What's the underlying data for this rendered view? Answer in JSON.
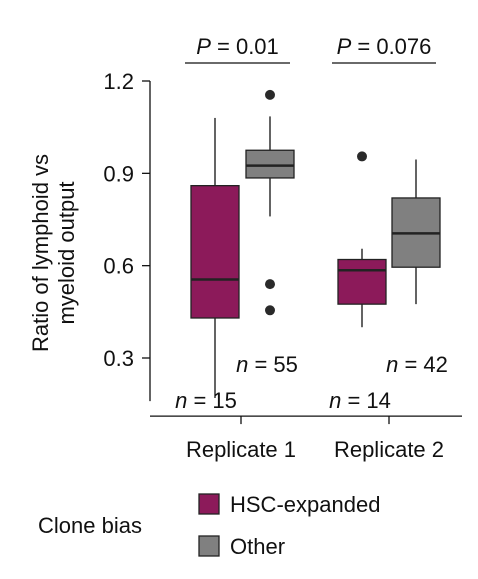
{
  "chart_data": {
    "type": "box",
    "ylabel": "Ratio of lymphoid vs\nmyeloid output",
    "ylim": [
      0.16,
      1.2
    ],
    "yticks": [
      0.3,
      0.6,
      0.9,
      1.2
    ],
    "ytick_labels": [
      "0.3",
      "0.6",
      "0.9",
      "1.2"
    ],
    "categories": [
      "Replicate 1",
      "Replicate 2"
    ],
    "legend": {
      "title": "Clone bias",
      "placement": "bottom",
      "entries": [
        {
          "name": "HSC-expanded",
          "color": "#8c1a5a"
        },
        {
          "name": "Other",
          "color": "#808080"
        }
      ]
    },
    "groups": [
      {
        "category": "Replicate 1",
        "boxes": [
          {
            "series": "HSC-expanded",
            "color": "#8c1a5a",
            "n_label": "n = 15",
            "whisker_low": 0.17,
            "q1": 0.43,
            "median": 0.555,
            "q3": 0.86,
            "whisker_high": 1.08,
            "outliers": []
          },
          {
            "series": "Other",
            "color": "#808080",
            "n_label": "n = 55",
            "whisker_low": 0.76,
            "q1": 0.885,
            "median": 0.925,
            "q3": 0.975,
            "whisker_high": 1.085,
            "outliers": [
              1.155,
              0.54,
              0.455
            ]
          }
        ],
        "pvalue": "P = 0.01"
      },
      {
        "category": "Replicate 2",
        "boxes": [
          {
            "series": "HSC-expanded",
            "color": "#8c1a5a",
            "n_label": "n = 14",
            "whisker_low": 0.4,
            "q1": 0.475,
            "median": 0.585,
            "q3": 0.62,
            "whisker_high": 0.655,
            "outliers": [
              0.955
            ]
          },
          {
            "series": "Other",
            "color": "#808080",
            "n_label": "n = 42",
            "whisker_low": 0.475,
            "q1": 0.595,
            "median": 0.705,
            "q3": 0.82,
            "whisker_high": 0.945,
            "outliers": []
          }
        ],
        "pvalue": "P = 0.076"
      }
    ]
  }
}
